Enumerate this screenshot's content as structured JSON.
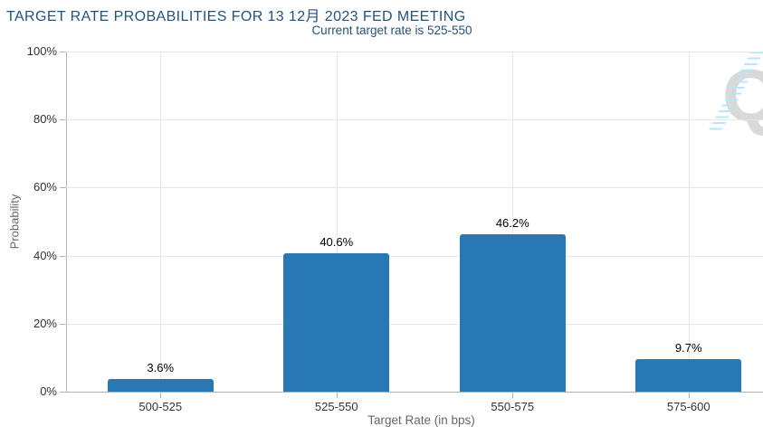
{
  "chart_data": {
    "type": "bar",
    "title": "TARGET RATE PROBABILITIES FOR 13 12月 2023 FED MEETING",
    "subtitle": "Current target rate is 525-550",
    "xlabel": "Target Rate (in bps)",
    "ylabel": "Probability",
    "categories": [
      "500-525",
      "525-550",
      "550-575",
      "575-600"
    ],
    "values": [
      3.6,
      40.6,
      46.2,
      9.7
    ],
    "value_labels": [
      "3.6%",
      "40.6%",
      "46.2%",
      "9.7%"
    ],
    "ylim": [
      0,
      100
    ],
    "yticks": [
      "0%",
      "20%",
      "40%",
      "60%",
      "80%",
      "100%"
    ],
    "ytick_values": [
      0,
      20,
      40,
      60,
      80,
      100
    ],
    "grid": true,
    "legend": false
  },
  "colors": {
    "bar": "#2878b5",
    "title_text": "#24527b",
    "gridline": "#e6e6e6",
    "axis_line": "#b3b3b3",
    "tick_label": "#333333",
    "axis_title": "#666666",
    "value_label": "#000000",
    "watermark_gray": "#d9d9d9",
    "watermark_blue": "#b9e5f6"
  },
  "watermark": {
    "letter": "Q"
  }
}
